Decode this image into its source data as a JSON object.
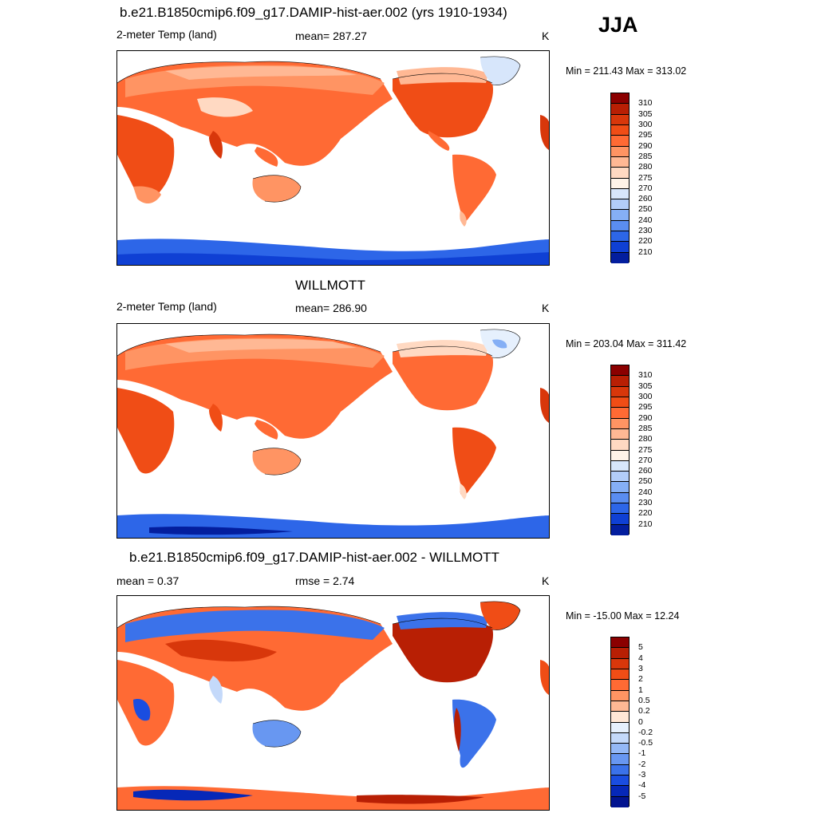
{
  "season": "JJA",
  "panels": [
    {
      "title": "b.e21.B1850cmip6.f09_g17.DAMIP-hist-aer.002 (yrs 1910-1934)",
      "left_label": "2-meter Temp (land)",
      "center_label": "mean= 287.27",
      "units": "K",
      "minmax": "Min = 211.43 Max = 313.02",
      "kind": "abs"
    },
    {
      "title": "WILLMOTT",
      "left_label": "2-meter Temp (land)",
      "center_label": "mean= 286.90",
      "units": "K",
      "minmax": "Min = 203.04 Max = 311.42",
      "kind": "abs2"
    },
    {
      "title": "b.e21.B1850cmip6.f09_g17.DAMIP-hist-aer.002 - WILLMOTT",
      "left_label": "mean =   0.37",
      "center_label": "rmse =   2.74",
      "units": "K",
      "minmax": "Min = -15.00 Max =  12.24",
      "kind": "diff"
    }
  ],
  "colorbars": {
    "abs": {
      "labels": [
        "310",
        "305",
        "300",
        "295",
        "290",
        "285",
        "280",
        "275",
        "270",
        "260",
        "250",
        "240",
        "230",
        "220",
        "210"
      ],
      "colors": [
        "#8b0000",
        "#b81f04",
        "#d8370b",
        "#f04d16",
        "#ff6a34",
        "#ff9463",
        "#ffb894",
        "#ffd9c2",
        "#fff3e8",
        "#d7e6fb",
        "#b2cdf8",
        "#85aff5",
        "#5a8df0",
        "#2d66e8",
        "#0f40d4",
        "#031e9e"
      ]
    },
    "diff": {
      "labels": [
        "5",
        "4",
        "3",
        "2",
        "1",
        "0.5",
        "0.2",
        "0",
        "-0.2",
        "-0.5",
        "-1",
        "-2",
        "-3",
        "-4",
        "-5"
      ],
      "colors": [
        "#8b0000",
        "#b81f04",
        "#d8370b",
        "#f04d16",
        "#ff6a34",
        "#ff9463",
        "#ffb894",
        "#ffe7d6",
        "#e6f0fd",
        "#c4d9fa",
        "#94b8f6",
        "#6897f1",
        "#3b72ea",
        "#1a4de0",
        "#0628b8",
        "#021490"
      ]
    }
  }
}
